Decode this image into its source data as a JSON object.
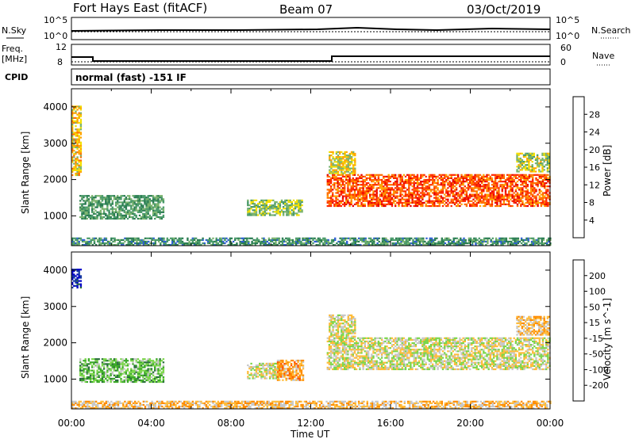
{
  "header": {
    "station": "Fort Hays East (fitACF)",
    "beam": "Beam 07",
    "date": "03/Oct/2019"
  },
  "strips": {
    "nsky_label": "N.Sky",
    "nsky_ticks": [
      "10^5",
      "10^0"
    ],
    "nsearch_label": "N.Search",
    "nsearch_ticks": [
      "10^5",
      "10^0"
    ],
    "freq_label": "Freq.",
    "freq_unit": "[MHz]",
    "freq_ticks": [
      "12",
      "8"
    ],
    "nave_label": "Nave",
    "nave_ticks": [
      "60",
      "0"
    ],
    "cpid_label": "CPID",
    "cpid_text": "normal (fast) -151 IF"
  },
  "chart_data": [
    {
      "type": "heatmap",
      "name": "Power",
      "ylabel": "Slant Range [km]",
      "yticks": [
        "4000",
        "3000",
        "2000",
        "1000"
      ],
      "xlabel": "Time UT",
      "xticks": [
        "00:00",
        "04:00",
        "08:00",
        "12:00",
        "16:00",
        "20:00",
        "00:00"
      ],
      "colorbar_label": "Power [dB]",
      "colorbar_ticks": [
        "28",
        "24",
        "20",
        "16",
        "12",
        "8",
        "4"
      ],
      "colors": [
        "#1428ff",
        "#2d5fd2",
        "#2a7c52",
        "#4a9a6a",
        "#7bb36e",
        "#f4e000",
        "#ffa500",
        "#ff6f00",
        "#ff2800",
        "#e60000"
      ],
      "regions": [
        {
          "t0": 0.4,
          "t1": 4.6,
          "r0": 900,
          "r1": 1550,
          "level": 0.35
        },
        {
          "t0": 8.8,
          "t1": 11.6,
          "r0": 1000,
          "r1": 1450,
          "level": 0.45
        },
        {
          "t0": 12.8,
          "t1": 24.0,
          "r0": 1250,
          "r1": 2150,
          "level": 0.8
        },
        {
          "t0": 12.9,
          "t1": 14.2,
          "r0": 2150,
          "r1": 2750,
          "level": 0.55
        },
        {
          "t0": 22.3,
          "t1": 24.0,
          "r0": 2200,
          "r1": 2700,
          "level": 0.5
        },
        {
          "t0": 0.0,
          "t1": 0.5,
          "r0": 2100,
          "r1": 4000,
          "level": 0.6
        },
        {
          "t0": 0.0,
          "t1": 24.0,
          "r0": 180,
          "r1": 400,
          "level": 0.3
        }
      ]
    },
    {
      "type": "heatmap",
      "name": "Velocity",
      "ylabel": "Slant Range [km]",
      "yticks": [
        "4000",
        "3000",
        "2000",
        "1000"
      ],
      "xlabel": "Time UT",
      "xticks": [
        "00:00",
        "04:00",
        "08:00",
        "12:00",
        "16:00",
        "20:00",
        "00:00"
      ],
      "colorbar_label": "Velocity [m s^-1]",
      "colorbar_ticks": [
        "200",
        "100",
        "50",
        "15",
        "-15",
        "-50",
        "-100",
        "-200"
      ],
      "colors": [
        "#ff0000",
        "#ff5000",
        "#ff8c00",
        "#ffbc3a",
        "#c8c8c8",
        "#7bd64a",
        "#3caa28",
        "#2a6e3c",
        "#1438a0",
        "#0000c8"
      ],
      "regions": [
        {
          "t0": 0.4,
          "t1": 4.6,
          "r0": 900,
          "r1": 1550,
          "level": 0.6
        },
        {
          "t0": 8.8,
          "t1": 10.4,
          "r0": 1000,
          "r1": 1450,
          "level": 0.45
        },
        {
          "t0": 10.3,
          "t1": 11.6,
          "r0": 950,
          "r1": 1500,
          "level": 0.3
        },
        {
          "t0": 12.8,
          "t1": 24.0,
          "r0": 1250,
          "r1": 2150,
          "level": 0.45
        },
        {
          "t0": 12.9,
          "t1": 14.2,
          "r0": 2150,
          "r1": 2750,
          "level": 0.45
        },
        {
          "t0": 22.3,
          "t1": 24.0,
          "r0": 2200,
          "r1": 2700,
          "level": 0.35
        },
        {
          "t0": 0.0,
          "t1": 0.5,
          "r0": 3500,
          "r1": 4000,
          "level": 0.9
        },
        {
          "t0": 0.0,
          "t1": 24.0,
          "r0": 180,
          "r1": 400,
          "level": 0.35
        }
      ]
    }
  ]
}
